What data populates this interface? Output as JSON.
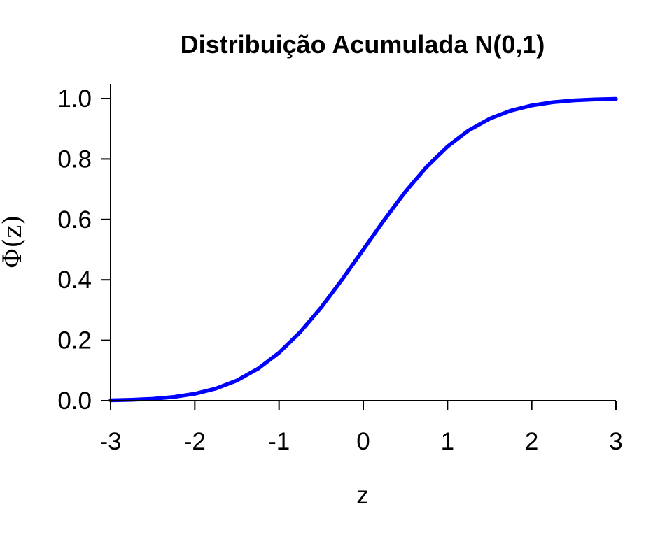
{
  "chart_data": {
    "type": "line",
    "title": "Distribuição Acumulada N(0,1)",
    "xlabel": "z",
    "ylabel": "Φ(z)",
    "xlim": [
      -3,
      3
    ],
    "ylim": [
      0,
      1
    ],
    "x_ticks": [
      -3,
      -2,
      -1,
      0,
      1,
      2,
      3
    ],
    "x_tick_labels": [
      "-3",
      "-2",
      "-1",
      "0",
      "1",
      "2",
      "3"
    ],
    "y_ticks": [
      0,
      0.2,
      0.4,
      0.6,
      0.8,
      1.0
    ],
    "y_tick_labels": [
      "0.0",
      "0.2",
      "0.4",
      "0.6",
      "0.8",
      "1.0"
    ],
    "grid": false,
    "series": [
      {
        "color": "#0000ff",
        "x": [
          -3.0,
          -2.75,
          -2.5,
          -2.25,
          -2.0,
          -1.75,
          -1.5,
          -1.25,
          -1.0,
          -0.75,
          -0.5,
          -0.25,
          0.0,
          0.25,
          0.5,
          0.75,
          1.0,
          1.25,
          1.5,
          1.75,
          2.0,
          2.25,
          2.5,
          2.75,
          3.0
        ],
        "y": [
          0.0013,
          0.003,
          0.0062,
          0.0122,
          0.0228,
          0.0401,
          0.0668,
          0.1056,
          0.1587,
          0.2266,
          0.3085,
          0.4013,
          0.5,
          0.5987,
          0.6915,
          0.7734,
          0.8413,
          0.8944,
          0.9332,
          0.9599,
          0.9772,
          0.9878,
          0.9938,
          0.997,
          0.9987
        ]
      }
    ]
  }
}
